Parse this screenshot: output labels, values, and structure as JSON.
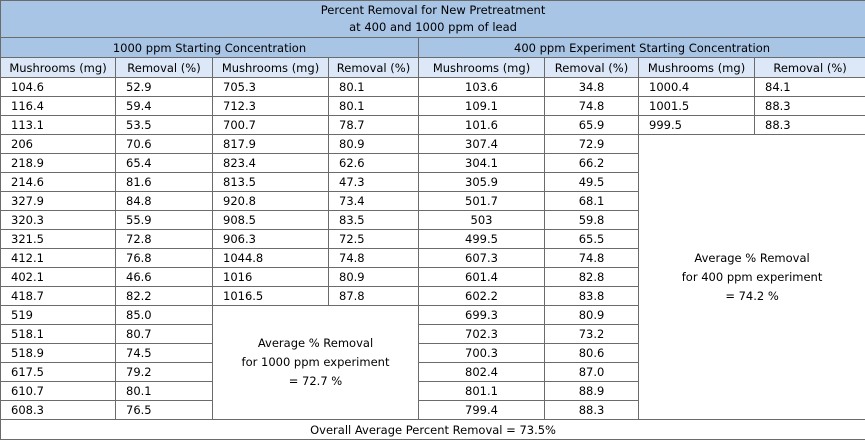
{
  "title_line1": "Percent Removal for New Pretreatment",
  "title_line2": "at 400 and 1000 ppm of lead",
  "group1_header": "1000 ppm Starting Concentration",
  "group2_header": "400 ppm Experiment Starting Concentration",
  "col_mushrooms": "Mushrooms (mg)",
  "col_removal": "Removal (%)",
  "rows_1000_a": [
    [
      "104.6",
      "52.9"
    ],
    [
      "116.4",
      "59.4"
    ],
    [
      "113.1",
      "53.5"
    ],
    [
      "206",
      "70.6"
    ],
    [
      "218.9",
      "65.4"
    ],
    [
      "214.6",
      "81.6"
    ],
    [
      "327.9",
      "84.8"
    ],
    [
      "320.3",
      "55.9"
    ],
    [
      "321.5",
      "72.8"
    ],
    [
      "412.1",
      "76.8"
    ],
    [
      "402.1",
      "46.6"
    ],
    [
      "418.7",
      "82.2"
    ],
    [
      "519",
      "85.0"
    ],
    [
      "518.1",
      "80.7"
    ],
    [
      "518.9",
      "74.5"
    ],
    [
      "617.5",
      "79.2"
    ],
    [
      "610.7",
      "80.1"
    ],
    [
      "608.3",
      "76.5"
    ]
  ],
  "rows_1000_b": [
    [
      "705.3",
      "80.1"
    ],
    [
      "712.3",
      "80.1"
    ],
    [
      "700.7",
      "78.7"
    ],
    [
      "817.9",
      "80.9"
    ],
    [
      "823.4",
      "62.6"
    ],
    [
      "813.5",
      "47.3"
    ],
    [
      "920.8",
      "73.4"
    ],
    [
      "908.5",
      "83.5"
    ],
    [
      "906.3",
      "72.5"
    ],
    [
      "1044.8",
      "74.8"
    ],
    [
      "1016",
      "80.9"
    ],
    [
      "1016.5",
      "87.8"
    ]
  ],
  "rows_400_a": [
    [
      "103.6",
      "34.8"
    ],
    [
      "109.1",
      "74.8"
    ],
    [
      "101.6",
      "65.9"
    ],
    [
      "307.4",
      "72.9"
    ],
    [
      "304.1",
      "66.2"
    ],
    [
      "305.9",
      "49.5"
    ],
    [
      "501.7",
      "68.1"
    ],
    [
      "503",
      "59.8"
    ],
    [
      "499.5",
      "65.5"
    ],
    [
      "607.3",
      "74.8"
    ],
    [
      "601.4",
      "82.8"
    ],
    [
      "602.2",
      "83.8"
    ],
    [
      "699.3",
      "80.9"
    ],
    [
      "702.3",
      "73.2"
    ],
    [
      "700.3",
      "80.6"
    ],
    [
      "802.4",
      "87.0"
    ],
    [
      "801.1",
      "88.9"
    ],
    [
      "799.4",
      "88.3"
    ]
  ],
  "rows_400_b": [
    [
      "1000.4",
      "84.1"
    ],
    [
      "1001.5",
      "88.3"
    ],
    [
      "999.5",
      "88.3"
    ]
  ],
  "avg_1000": [
    "Average % Removal",
    "for 1000 ppm experiment",
    "= 72.7 %"
  ],
  "avg_400": [
    "Average % Removal",
    "for 400 ppm experiment",
    "= 74.2 %"
  ],
  "overall": "Overall Average Percent Removal = 73.5%",
  "colors": {
    "header_blue": "#a9c5e6",
    "subheader_blue": "#dce8f7",
    "border": "#6b6b6b"
  }
}
